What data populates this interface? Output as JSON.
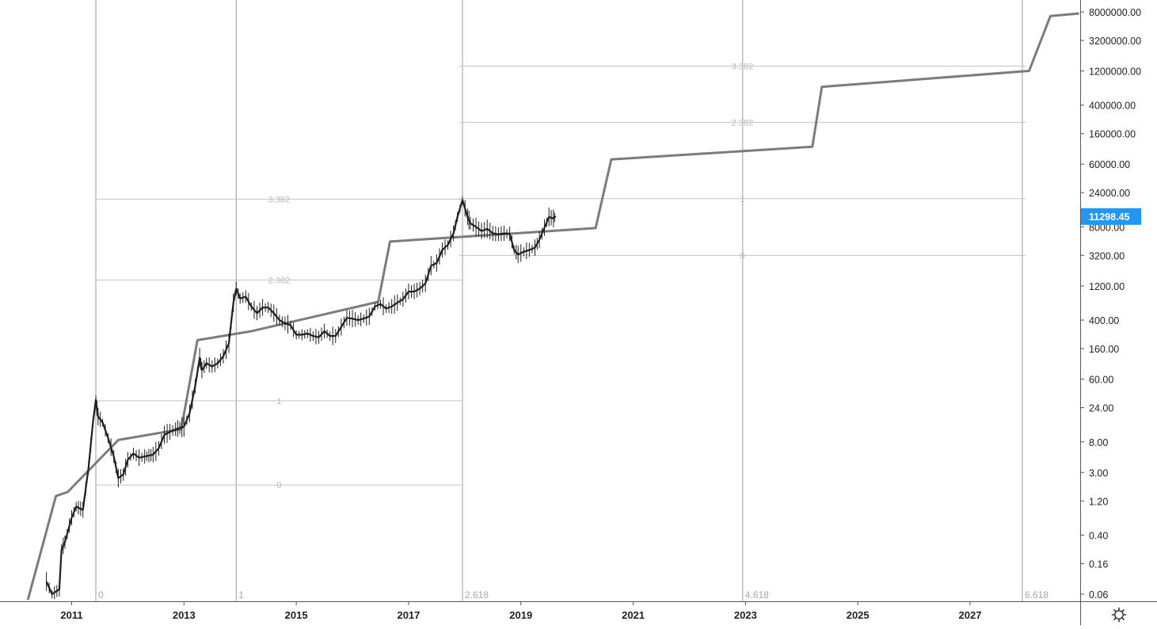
{
  "chart_data": {
    "type": "line",
    "scale": "log",
    "y_tick_labels": [
      "8000000.00",
      "3200000.00",
      "1200000.00",
      "400000.00",
      "160000.00",
      "60000.00",
      "24000.00",
      "8000.00",
      "3200.00",
      "1200.00",
      "400.00",
      "160.00",
      "60.00",
      "24.00",
      "8.00",
      "3.00",
      "1.20",
      "0.40",
      "0.16",
      "0.06"
    ],
    "y_tick_values": [
      8000000,
      3200000,
      1200000,
      400000,
      160000,
      60000,
      24000,
      8000,
      3200,
      1200,
      400,
      160,
      60,
      24,
      8,
      3,
      1.2,
      0.4,
      0.16,
      0.06
    ],
    "x_tick_labels": [
      "2011",
      "2013",
      "2015",
      "2017",
      "2019",
      "2021",
      "2023",
      "2025",
      "2027"
    ],
    "x_tick_years": [
      2011,
      2013,
      2015,
      2017,
      2019,
      2021,
      2023,
      2025,
      2027
    ],
    "x_range": [
      2010.22,
      2028.94
    ],
    "current_price": {
      "label": "11298.45",
      "value": 11298.45,
      "color": "#2196f3"
    },
    "colors": {
      "candles": "#1f1f1f",
      "model_line": "#7d7a82",
      "fib_lines": "#b5b5b5",
      "fib_text": "#b8b8b8",
      "axis_text": "#222222"
    },
    "fib_time_labels": [
      {
        "label": "0",
        "x": 2011.43
      },
      {
        "label": "1",
        "x": 2013.93
      },
      {
        "label": "2.618",
        "x": 2017.96
      },
      {
        "label": "4.618",
        "x": 2022.95
      },
      {
        "label": "6.618",
        "x": 2027.93
      }
    ],
    "fib_retracements": [
      {
        "x0": 2011.43,
        "x1": 2017.96,
        "levels": [
          {
            "label": "0",
            "value": 2.0
          },
          {
            "label": "1",
            "value": 30
          },
          {
            "label": "2.382",
            "value": 1450
          },
          {
            "label": "3.382",
            "value": 19500
          }
        ]
      },
      {
        "x0": 2017.9,
        "x1": 2027.99,
        "levels": [
          {
            "label": "0",
            "value": 3200
          },
          {
            "label": "1",
            "value": 19800
          },
          {
            "label": "2.382",
            "value": 230000
          },
          {
            "label": "3.382",
            "value": 1400000
          }
        ]
      }
    ],
    "series": [
      {
        "points": [
          [
            2010.22,
            0.05
          ],
          [
            2010.72,
            1.4
          ],
          [
            2010.93,
            1.6
          ],
          [
            2011.83,
            8.5
          ],
          [
            2012.95,
            12
          ],
          [
            2013.24,
            210
          ],
          [
            2014.2,
            280
          ],
          [
            2016.46,
            720
          ],
          [
            2016.67,
            5000
          ],
          [
            2020.33,
            7700
          ],
          [
            2020.61,
            70000
          ],
          [
            2024.19,
            105000
          ],
          [
            2024.36,
            720000
          ],
          [
            2028.05,
            1200000
          ],
          [
            2028.43,
            7000000
          ],
          [
            2028.94,
            7600000
          ]
        ]
      },
      {
        "points": [
          [
            2010.55,
            0.09
          ],
          [
            2010.65,
            0.06
          ],
          [
            2010.78,
            0.07
          ],
          [
            2010.82,
            0.25
          ],
          [
            2010.88,
            0.32
          ],
          [
            2011.0,
            0.7
          ],
          [
            2011.08,
            1.0
          ],
          [
            2011.2,
            0.9
          ],
          [
            2011.3,
            3.5
          ],
          [
            2011.38,
            15
          ],
          [
            2011.43,
            31
          ],
          [
            2011.47,
            18
          ],
          [
            2011.55,
            15
          ],
          [
            2011.65,
            9
          ],
          [
            2011.75,
            5
          ],
          [
            2011.83,
            2.5
          ],
          [
            2011.92,
            2.8
          ],
          [
            2012.0,
            4.5
          ],
          [
            2012.1,
            5.5
          ],
          [
            2012.2,
            4.8
          ],
          [
            2012.3,
            5.0
          ],
          [
            2012.45,
            5.3
          ],
          [
            2012.55,
            6.5
          ],
          [
            2012.65,
            10
          ],
          [
            2012.75,
            11
          ],
          [
            2012.85,
            12
          ],
          [
            2013.0,
            13
          ],
          [
            2013.1,
            20
          ],
          [
            2013.2,
            48
          ],
          [
            2013.28,
            120
          ],
          [
            2013.32,
            80
          ],
          [
            2013.4,
            100
          ],
          [
            2013.5,
            90
          ],
          [
            2013.6,
            100
          ],
          [
            2013.7,
            125
          ],
          [
            2013.8,
            190
          ],
          [
            2013.88,
            700
          ],
          [
            2013.93,
            1100
          ],
          [
            2014.0,
            800
          ],
          [
            2014.1,
            850
          ],
          [
            2014.2,
            620
          ],
          [
            2014.3,
            500
          ],
          [
            2014.4,
            600
          ],
          [
            2014.5,
            600
          ],
          [
            2014.6,
            500
          ],
          [
            2014.7,
            400
          ],
          [
            2014.8,
            360
          ],
          [
            2014.9,
            340
          ],
          [
            2015.0,
            250
          ],
          [
            2015.1,
            250
          ],
          [
            2015.2,
            260
          ],
          [
            2015.3,
            240
          ],
          [
            2015.4,
            230
          ],
          [
            2015.5,
            280
          ],
          [
            2015.6,
            240
          ],
          [
            2015.7,
            240
          ],
          [
            2015.8,
            320
          ],
          [
            2015.9,
            430
          ],
          [
            2016.0,
            420
          ],
          [
            2016.1,
            400
          ],
          [
            2016.2,
            420
          ],
          [
            2016.3,
            450
          ],
          [
            2016.4,
            620
          ],
          [
            2016.5,
            670
          ],
          [
            2016.6,
            580
          ],
          [
            2016.7,
            620
          ],
          [
            2016.8,
            700
          ],
          [
            2016.9,
            780
          ],
          [
            2017.0,
            1000
          ],
          [
            2017.1,
            1000
          ],
          [
            2017.2,
            1100
          ],
          [
            2017.3,
            1300
          ],
          [
            2017.4,
            2300
          ],
          [
            2017.5,
            2500
          ],
          [
            2017.6,
            3800
          ],
          [
            2017.7,
            4500
          ],
          [
            2017.8,
            6500
          ],
          [
            2017.87,
            11000
          ],
          [
            2017.96,
            19000
          ],
          [
            2018.05,
            11000
          ],
          [
            2018.1,
            9000
          ],
          [
            2018.2,
            8000
          ],
          [
            2018.3,
            7000
          ],
          [
            2018.4,
            7500
          ],
          [
            2018.5,
            6500
          ],
          [
            2018.6,
            6300
          ],
          [
            2018.7,
            6500
          ],
          [
            2018.8,
            6400
          ],
          [
            2018.88,
            3800
          ],
          [
            2018.95,
            3300
          ],
          [
            2019.05,
            3600
          ],
          [
            2019.15,
            3800
          ],
          [
            2019.25,
            4100
          ],
          [
            2019.33,
            5300
          ],
          [
            2019.42,
            7800
          ],
          [
            2019.5,
            11000
          ],
          [
            2019.58,
            10500
          ],
          [
            2019.62,
            11298
          ]
        ]
      }
    ]
  }
}
